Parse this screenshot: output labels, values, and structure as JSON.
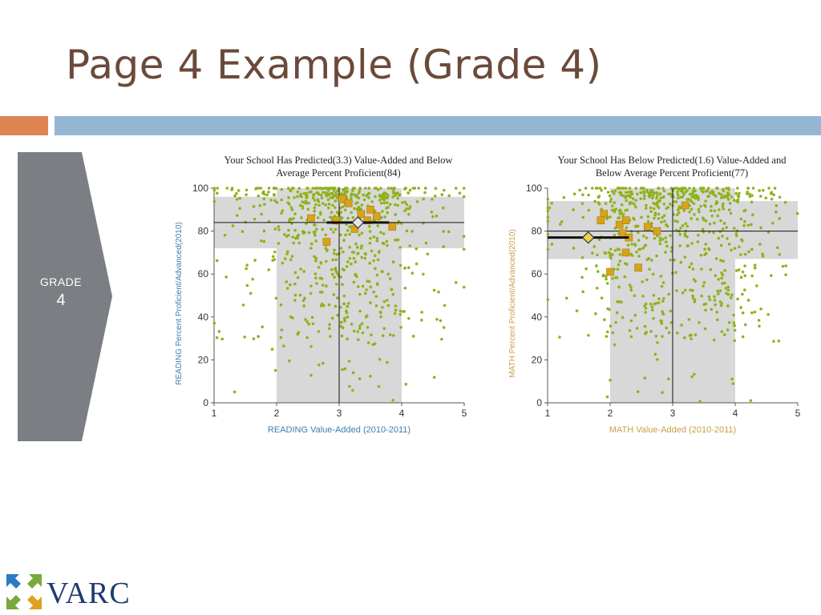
{
  "slide": {
    "title": "Page 4 Example (Grade 4)",
    "accent_orange": "#dd8452",
    "accent_blue": "#94b6d2",
    "title_color": "#6b4a3a"
  },
  "grade_panel": {
    "label": "GRADE",
    "number": "4",
    "color": "#7b7f83"
  },
  "logo": {
    "text": "VARC",
    "icon": "four-arrows-icon",
    "colors": [
      "#2a7bc4",
      "#7aa83a",
      "#e0a020",
      "#1e3a6e"
    ]
  },
  "chart_data": [
    {
      "type": "scatter",
      "subject": "reading",
      "title_lines": [
        "Your School Has Predicted(3.3) Value-Added and Below",
        "Average Percent Proficient(84)"
      ],
      "xlabel": "READING Value-Added (2010-2011)",
      "ylabel": "READING Percent Proficient/Advanced(2010)",
      "label_color": "#3d7fb0",
      "xlim": [
        1,
        5
      ],
      "ylim": [
        0,
        100
      ],
      "xticks": [
        "1",
        "2",
        "3",
        "4",
        "5"
      ],
      "yticks": [
        "0",
        "20",
        "40",
        "60",
        "80",
        "100"
      ],
      "vline": 3,
      "hline": 84,
      "band": {
        "x": [
          2,
          4
        ],
        "y": [
          72,
          96
        ]
      },
      "school": {
        "x": 3.3,
        "y": 84,
        "ci_x": [
          2.8,
          3.8
        ]
      },
      "highlight_points": [
        [
          2.55,
          86
        ],
        [
          2.8,
          75
        ],
        [
          2.95,
          85
        ],
        [
          3.05,
          95
        ],
        [
          3.15,
          93
        ],
        [
          3.25,
          81
        ],
        [
          3.35,
          88
        ],
        [
          3.5,
          90
        ],
        [
          3.6,
          87
        ],
        [
          3.45,
          85
        ],
        [
          3.85,
          82
        ]
      ],
      "seed": 7
    },
    {
      "type": "scatter",
      "subject": "math",
      "title_lines": [
        "Your School Has Below Predicted(1.6) Value-Added and",
        "Below Average Percent Proficient(77)"
      ],
      "xlabel": "MATH Value-Added (2010-2011)",
      "ylabel": "MATH Percent Proficient/Advanced(2010)",
      "label_color": "#c8a04a",
      "xlim": [
        1,
        5
      ],
      "ylim": [
        0,
        100
      ],
      "xticks": [
        "1",
        "2",
        "3",
        "4",
        "5"
      ],
      "yticks": [
        "0",
        "20",
        "40",
        "60",
        "80",
        "100"
      ],
      "vline": 3,
      "hline": 80,
      "band": {
        "x": [
          2,
          4
        ],
        "y": [
          67,
          94
        ]
      },
      "school": {
        "x": 1.65,
        "y": 77,
        "ci_x": [
          1.0,
          2.3
        ]
      },
      "highlight_points": [
        [
          1.9,
          88
        ],
        [
          1.85,
          85
        ],
        [
          2.15,
          83
        ],
        [
          2.25,
          85
        ],
        [
          2.2,
          79
        ],
        [
          2.3,
          77
        ],
        [
          2.25,
          70
        ],
        [
          2.0,
          61
        ],
        [
          2.45,
          63
        ],
        [
          2.6,
          82
        ],
        [
          2.75,
          80
        ],
        [
          3.2,
          92
        ]
      ],
      "seed": 13
    }
  ]
}
